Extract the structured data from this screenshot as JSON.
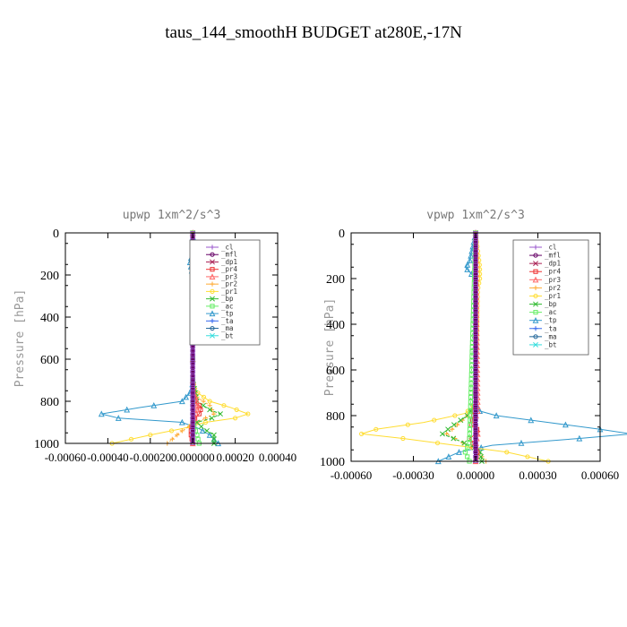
{
  "title": "taus_144_smoothH  BUDGET at280E,-17N",
  "legend_labels": [
    "_cl",
    "_mfl",
    "_dp1",
    "_pr4",
    "_pr3",
    "_pr2",
    "_pr1",
    "_bp",
    "_ac",
    "_tp",
    "_ta",
    "_ma",
    "_bt"
  ],
  "series_colors": {
    "_cl": "#9955cc",
    "_mfl": "#660066",
    "_dp1": "#aa2255",
    "_pr4": "#ee3333",
    "_pr3": "#ff6666",
    "_pr2": "#ffaa33",
    "_pr1": "#ffdd33",
    "_bp": "#33bb33",
    "_ac": "#66ee66",
    "_tp": "#3399cc",
    "_ta": "#3366ee",
    "_ma": "#226699",
    "_bt": "#33dddd"
  },
  "chart_data": [
    {
      "type": "line",
      "title": "upwp  1xm^2/s^3",
      "ylabel": "Pressure [hPa]",
      "xlim": [
        -0.0006,
        0.0004
      ],
      "ylim": [
        1000,
        0
      ],
      "x_ticks": [
        -0.0006,
        -0.0004,
        -0.0002,
        0.0,
        0.0002,
        0.0004
      ],
      "x_tick_labels": [
        "-0.00060",
        "-0.00040",
        "-0.00020",
        "0.000000",
        "0.00020",
        "0.00040"
      ],
      "y_ticks": [
        0,
        200,
        400,
        600,
        800,
        1000
      ],
      "y_tick_labels": [
        "0",
        "200",
        "400",
        "600",
        "800",
        "1000"
      ],
      "legend_position": "top-right",
      "series": [
        {
          "name": "_tp",
          "pressure": [
            0,
            100,
            130,
            200,
            300,
            500,
            700,
            750,
            800,
            830,
            860,
            880,
            900,
            930,
            960,
            1000
          ],
          "values": [
            0,
            5e-06,
            -1.5e-05,
            0,
            0,
            0,
            0,
            -5e-06,
            -5e-05,
            -0.00025,
            -0.00043,
            -0.00035,
            -5e-05,
            3e-05,
            8e-05,
            0.00012
          ]
        },
        {
          "name": "_pr1",
          "pressure": [
            0,
            100,
            200,
            700,
            750,
            800,
            830,
            860,
            880,
            900,
            930,
            960,
            1000
          ],
          "values": [
            0,
            5e-06,
            0,
            0,
            1e-05,
            8e-05,
            0.00018,
            0.00026,
            0.0002,
            6e-05,
            -5e-05,
            -0.0002,
            -0.00038
          ]
        },
        {
          "name": "_pr2",
          "pressure": [
            0,
            700,
            780,
            820,
            860,
            880,
            900,
            940,
            1000
          ],
          "values": [
            0,
            0,
            2e-05,
            8e-05,
            0.0001,
            6e-05,
            2e-05,
            -5e-05,
            -0.00012
          ]
        },
        {
          "name": "_bp",
          "pressure": [
            0,
            700,
            800,
            840,
            860,
            880,
            900,
            930,
            960,
            1000
          ],
          "values": [
            0,
            0,
            2e-05,
            8e-05,
            0.00013,
            9e-05,
            2e-05,
            5e-05,
            0.0001,
            0.0001
          ]
        },
        {
          "name": "_pr4",
          "pressure": [
            0,
            750,
            800,
            830,
            860,
            880,
            900,
            950,
            1000
          ],
          "values": [
            0,
            0,
            1e-05,
            4e-05,
            3e-05,
            1e-05,
            0,
            -1e-05,
            0
          ]
        },
        {
          "name": "_pr3",
          "pressure": [
            0,
            750,
            800,
            850,
            900,
            1000
          ],
          "values": [
            0,
            0,
            2e-05,
            2e-05,
            0,
            0
          ]
        },
        {
          "name": "_ac",
          "pressure": [
            0,
            900,
            960,
            1000
          ],
          "values": [
            0,
            0,
            2e-05,
            3e-05
          ]
        },
        {
          "name": "_dp1",
          "pressure": [
            0,
            1000
          ],
          "values": [
            0,
            0
          ]
        },
        {
          "name": "_ma",
          "pressure": [
            0,
            1000
          ],
          "values": [
            0,
            0
          ]
        },
        {
          "name": "_mfl",
          "pressure": [
            0,
            1000
          ],
          "values": [
            0,
            0
          ]
        },
        {
          "name": "_cl",
          "pressure": [
            0,
            1000
          ],
          "values": [
            0,
            0
          ]
        }
      ]
    },
    {
      "type": "line",
      "title": "vpwp  1xm^2/s^3",
      "ylabel": "Pressure [hPa]",
      "xlim": [
        -0.0006,
        0.0006
      ],
      "ylim": [
        1000,
        0
      ],
      "x_ticks": [
        -0.0006,
        -0.0003,
        0.0,
        0.0003,
        0.0006
      ],
      "x_tick_labels": [
        "-0.00060",
        "-0.00030",
        "0.00000",
        "0.00030",
        "0.00060"
      ],
      "y_ticks": [
        0,
        200,
        400,
        600,
        800,
        1000
      ],
      "y_tick_labels": [
        "0",
        "200",
        "400",
        "600",
        "800",
        "1000"
      ],
      "legend_position": "top-right",
      "series": [
        {
          "name": "_tp",
          "pressure": [
            0,
            130,
            150,
            170,
            200,
            750,
            780,
            800,
            830,
            860,
            880,
            900,
            930,
            960,
            1000
          ],
          "values": [
            0,
            -3e-05,
            -5e-05,
            -3e-05,
            0,
            0,
            2e-05,
            0.0001,
            0.00035,
            0.0006,
            0.00075,
            0.0005,
            8e-05,
            -8e-05,
            -0.00018
          ]
        },
        {
          "name": "_pr1",
          "pressure": [
            0,
            150,
            200,
            250,
            750,
            790,
            830,
            860,
            880,
            900,
            930,
            960,
            1000
          ],
          "values": [
            0,
            2e-05,
            2e-05,
            1e-05,
            0,
            -5e-05,
            -0.00025,
            -0.00048,
            -0.00055,
            -0.00035,
            -0.0001,
            0.00015,
            0.00035
          ]
        },
        {
          "name": "_pr2",
          "pressure": [
            0,
            750,
            800,
            850,
            880,
            910,
            950,
            1000
          ],
          "values": [
            0,
            0,
            -4e-05,
            -0.0001,
            -0.00014,
            -8e-05,
            0,
            5e-05
          ]
        },
        {
          "name": "_bp",
          "pressure": [
            0,
            750,
            800,
            850,
            880,
            910,
            950,
            1000
          ],
          "values": [
            0,
            0,
            -4e-05,
            -0.00012,
            -0.00016,
            -8e-05,
            2e-05,
            3e-05
          ]
        },
        {
          "name": "_pr4",
          "pressure": [
            0,
            750,
            800,
            840,
            870,
            900,
            950,
            1000
          ],
          "values": [
            0,
            0,
            -1e-05,
            -2e-05,
            2e-05,
            -3e-05,
            1e-05,
            0
          ]
        },
        {
          "name": "_pr3",
          "pressure": [
            0,
            780,
            830,
            880,
            930,
            1000
          ],
          "values": [
            0,
            1e-05,
            -1e-05,
            1e-05,
            0,
            0
          ]
        },
        {
          "name": "_ac",
          "pressure": [
            0,
            920,
            960,
            1000
          ],
          "values": [
            0,
            -3e-05,
            -5e-05,
            -3e-05
          ]
        },
        {
          "name": "_dp1",
          "pressure": [
            0,
            1000
          ],
          "values": [
            0,
            0
          ]
        },
        {
          "name": "_ma",
          "pressure": [
            0,
            1000
          ],
          "values": [
            0,
            0
          ]
        },
        {
          "name": "_mfl",
          "pressure": [
            0,
            1000
          ],
          "values": [
            0,
            0
          ]
        },
        {
          "name": "_cl",
          "pressure": [
            0,
            1000
          ],
          "values": [
            0,
            0
          ]
        }
      ]
    }
  ]
}
